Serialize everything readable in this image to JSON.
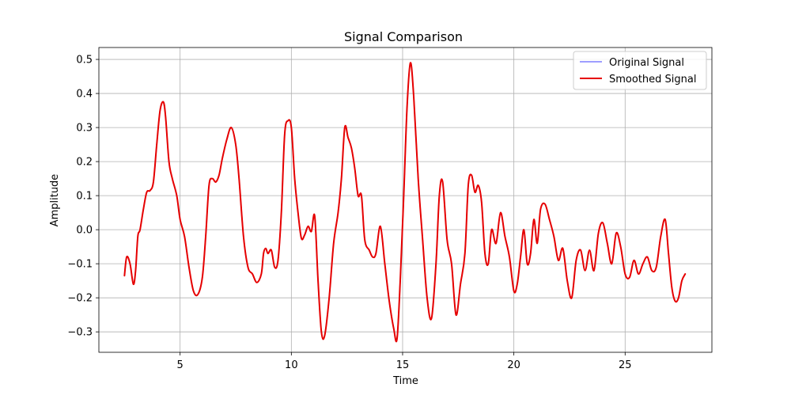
{
  "chart_data": {
    "type": "line",
    "title": "Signal Comparison",
    "xlabel": "Time",
    "ylabel": "Amplitude",
    "xlim": [
      1.35,
      28.9
    ],
    "ylim": [
      -0.36,
      0.535
    ],
    "xticks": [
      5,
      10,
      15,
      20,
      25
    ],
    "yticks": [
      -0.3,
      -0.2,
      -0.1,
      0.0,
      0.1,
      0.2,
      0.3,
      0.4,
      0.5
    ],
    "xtick_labels": [
      "5",
      "10",
      "15",
      "20",
      "25"
    ],
    "ytick_labels": [
      "−0.3",
      "−0.2",
      "−0.1",
      "0.0",
      "0.1",
      "0.2",
      "0.3",
      "0.4",
      "0.5"
    ],
    "grid": true,
    "legend_position": "top-right",
    "series": [
      {
        "name": "Original Signal",
        "color": "#7f7fff",
        "x": [
          2.5,
          2.6,
          2.75,
          2.9,
          3.0,
          3.1,
          3.2,
          3.35,
          3.5,
          3.65,
          3.8,
          3.95,
          4.1,
          4.25,
          4.35,
          4.5,
          4.65,
          4.85,
          5.0,
          5.2,
          5.4,
          5.6,
          5.8,
          6.0,
          6.15,
          6.3,
          6.45,
          6.6,
          6.75,
          6.9,
          7.1,
          7.3,
          7.5,
          7.65,
          7.85,
          8.05,
          8.25,
          8.45,
          8.65,
          8.75,
          8.85,
          8.95,
          9.1,
          9.25,
          9.4,
          9.55,
          9.7,
          9.85,
          10.0,
          10.15,
          10.3,
          10.45,
          10.6,
          10.75,
          10.9,
          11.05,
          11.2,
          11.35,
          11.5,
          11.7,
          11.9,
          12.1,
          12.25,
          12.4,
          12.55,
          12.7,
          12.85,
          13.0,
          13.15,
          13.3,
          13.5,
          13.65,
          13.8,
          14.0,
          14.2,
          14.4,
          14.6,
          14.75,
          14.9,
          15.05,
          15.2,
          15.35,
          15.5,
          15.7,
          15.9,
          16.1,
          16.3,
          16.5,
          16.65,
          16.8,
          17.0,
          17.2,
          17.4,
          17.6,
          17.8,
          17.95,
          18.1,
          18.25,
          18.4,
          18.55,
          18.7,
          18.85,
          19.0,
          19.2,
          19.4,
          19.6,
          19.8,
          20.0,
          20.15,
          20.3,
          20.45,
          20.6,
          20.75,
          20.9,
          21.05,
          21.2,
          21.4,
          21.6,
          21.8,
          22.0,
          22.2,
          22.4,
          22.6,
          22.8,
          23.0,
          23.2,
          23.4,
          23.6,
          23.8,
          24.0,
          24.2,
          24.4,
          24.6,
          24.8,
          25.0,
          25.2,
          25.4,
          25.6,
          25.8,
          26.0,
          26.2,
          26.4,
          26.6,
          26.8,
          26.95,
          27.1,
          27.25,
          27.4,
          27.55,
          27.7
        ],
        "y": [
          -0.135,
          -0.08,
          -0.1,
          -0.16,
          -0.12,
          -0.02,
          0.0,
          0.06,
          0.11,
          0.115,
          0.14,
          0.25,
          0.35,
          0.375,
          0.33,
          0.2,
          0.15,
          0.1,
          0.03,
          -0.02,
          -0.11,
          -0.18,
          -0.19,
          -0.14,
          -0.02,
          0.13,
          0.15,
          0.14,
          0.16,
          0.21,
          0.265,
          0.3,
          0.25,
          0.15,
          -0.02,
          -0.11,
          -0.13,
          -0.155,
          -0.13,
          -0.07,
          -0.055,
          -0.07,
          -0.06,
          -0.11,
          -0.09,
          0.05,
          0.28,
          0.32,
          0.3,
          0.15,
          0.05,
          -0.025,
          -0.015,
          0.01,
          -0.005,
          0.04,
          -0.15,
          -0.3,
          -0.31,
          -0.2,
          -0.04,
          0.05,
          0.15,
          0.3,
          0.27,
          0.24,
          0.18,
          0.1,
          0.1,
          -0.03,
          -0.06,
          -0.08,
          -0.07,
          0.01,
          -0.1,
          -0.21,
          -0.29,
          -0.32,
          -0.14,
          0.1,
          0.36,
          0.49,
          0.39,
          0.15,
          -0.03,
          -0.2,
          -0.26,
          -0.1,
          0.1,
          0.14,
          -0.03,
          -0.1,
          -0.25,
          -0.16,
          -0.07,
          0.13,
          0.16,
          0.11,
          0.13,
          0.08,
          -0.07,
          -0.1,
          0.0,
          -0.04,
          0.05,
          -0.02,
          -0.08,
          -0.18,
          -0.16,
          -0.08,
          0.0,
          -0.1,
          -0.07,
          0.03,
          -0.04,
          0.06,
          0.075,
          0.03,
          -0.02,
          -0.09,
          -0.055,
          -0.15,
          -0.2,
          -0.09,
          -0.06,
          -0.12,
          -0.06,
          -0.12,
          -0.01,
          0.02,
          -0.04,
          -0.1,
          -0.01,
          -0.05,
          -0.13,
          -0.14,
          -0.09,
          -0.13,
          -0.1,
          -0.08,
          -0.12,
          -0.11,
          -0.02,
          0.03,
          -0.07,
          -0.17,
          -0.21,
          -0.2,
          -0.15,
          -0.13
        ]
      },
      {
        "name": "Smoothed Signal",
        "color": "#e60000",
        "x": [
          2.5,
          2.6,
          2.75,
          2.9,
          3.0,
          3.1,
          3.2,
          3.35,
          3.5,
          3.65,
          3.8,
          3.95,
          4.1,
          4.25,
          4.35,
          4.5,
          4.65,
          4.85,
          5.0,
          5.2,
          5.4,
          5.6,
          5.8,
          6.0,
          6.15,
          6.3,
          6.45,
          6.6,
          6.75,
          6.9,
          7.1,
          7.3,
          7.5,
          7.65,
          7.85,
          8.05,
          8.25,
          8.45,
          8.65,
          8.75,
          8.85,
          8.95,
          9.1,
          9.25,
          9.4,
          9.55,
          9.7,
          9.85,
          10.0,
          10.15,
          10.3,
          10.45,
          10.6,
          10.75,
          10.9,
          11.05,
          11.2,
          11.35,
          11.5,
          11.7,
          11.9,
          12.1,
          12.25,
          12.4,
          12.55,
          12.7,
          12.85,
          13.0,
          13.15,
          13.3,
          13.5,
          13.65,
          13.8,
          14.0,
          14.2,
          14.4,
          14.6,
          14.75,
          14.9,
          15.05,
          15.2,
          15.35,
          15.5,
          15.7,
          15.9,
          16.1,
          16.3,
          16.5,
          16.65,
          16.8,
          17.0,
          17.2,
          17.4,
          17.6,
          17.8,
          17.95,
          18.1,
          18.25,
          18.4,
          18.55,
          18.7,
          18.85,
          19.0,
          19.2,
          19.4,
          19.6,
          19.8,
          20.0,
          20.15,
          20.3,
          20.45,
          20.6,
          20.75,
          20.9,
          21.05,
          21.2,
          21.4,
          21.6,
          21.8,
          22.0,
          22.2,
          22.4,
          22.6,
          22.8,
          23.0,
          23.2,
          23.4,
          23.6,
          23.8,
          24.0,
          24.2,
          24.4,
          24.6,
          24.8,
          25.0,
          25.2,
          25.4,
          25.6,
          25.8,
          26.0,
          26.2,
          26.4,
          26.6,
          26.8,
          26.95,
          27.1,
          27.25,
          27.4,
          27.55,
          27.7
        ],
        "y": [
          -0.135,
          -0.08,
          -0.1,
          -0.16,
          -0.12,
          -0.02,
          0.0,
          0.06,
          0.11,
          0.115,
          0.14,
          0.25,
          0.35,
          0.375,
          0.33,
          0.2,
          0.15,
          0.1,
          0.03,
          -0.02,
          -0.11,
          -0.18,
          -0.19,
          -0.14,
          -0.02,
          0.13,
          0.15,
          0.14,
          0.16,
          0.21,
          0.265,
          0.3,
          0.25,
          0.15,
          -0.02,
          -0.11,
          -0.13,
          -0.155,
          -0.13,
          -0.07,
          -0.055,
          -0.07,
          -0.06,
          -0.11,
          -0.09,
          0.05,
          0.28,
          0.32,
          0.3,
          0.15,
          0.05,
          -0.025,
          -0.015,
          0.01,
          -0.005,
          0.04,
          -0.15,
          -0.3,
          -0.31,
          -0.2,
          -0.04,
          0.05,
          0.15,
          0.3,
          0.27,
          0.24,
          0.18,
          0.1,
          0.1,
          -0.03,
          -0.06,
          -0.08,
          -0.07,
          0.01,
          -0.1,
          -0.21,
          -0.29,
          -0.32,
          -0.14,
          0.1,
          0.36,
          0.49,
          0.39,
          0.15,
          -0.03,
          -0.2,
          -0.26,
          -0.1,
          0.1,
          0.14,
          -0.03,
          -0.1,
          -0.25,
          -0.16,
          -0.07,
          0.13,
          0.16,
          0.11,
          0.13,
          0.08,
          -0.07,
          -0.1,
          0.0,
          -0.04,
          0.05,
          -0.02,
          -0.08,
          -0.18,
          -0.16,
          -0.08,
          0.0,
          -0.1,
          -0.07,
          0.03,
          -0.04,
          0.06,
          0.075,
          0.03,
          -0.02,
          -0.09,
          -0.055,
          -0.15,
          -0.2,
          -0.09,
          -0.06,
          -0.12,
          -0.06,
          -0.12,
          -0.01,
          0.02,
          -0.04,
          -0.1,
          -0.01,
          -0.05,
          -0.13,
          -0.14,
          -0.09,
          -0.13,
          -0.1,
          -0.08,
          -0.12,
          -0.11,
          -0.02,
          0.03,
          -0.07,
          -0.17,
          -0.21,
          -0.2,
          -0.15,
          -0.13
        ]
      }
    ]
  }
}
